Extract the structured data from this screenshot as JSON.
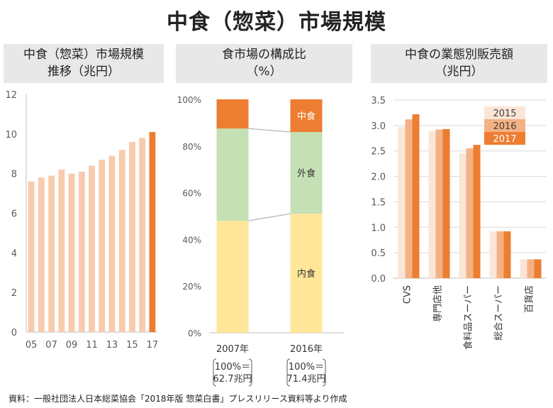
{
  "page": {
    "title": "中食（惣菜）市場規模",
    "source": "資料：一般社団法人日本総菜協会「2018年版 惣菜白書」プレスリリース資料等より作成"
  },
  "panels": {
    "trend": {
      "title_line1": "中食（惣菜）市場規模",
      "title_line2": "推移（兆円）"
    },
    "share": {
      "title_line1": "食市場の構成比",
      "title_line2": "（%）"
    },
    "format": {
      "title_line1": "中食の業態別販売額",
      "title_line2": "（兆円）"
    }
  },
  "colors": {
    "light_orange": "#f8cbad",
    "orange": "#ed7d31",
    "mid_orange": "#f4b183",
    "pale_orange": "#fbe5d6",
    "green": "#c5e0b4",
    "yellow": "#ffe699",
    "grid": "#d9d9d9"
  },
  "chart_data": [
    {
      "type": "bar",
      "title": "中食（惣菜）市場規模推移（兆円）",
      "categories": [
        "05",
        "06",
        "07",
        "08",
        "09",
        "10",
        "11",
        "12",
        "13",
        "14",
        "15",
        "16",
        "17"
      ],
      "tick_labels": [
        "05",
        "07",
        "09",
        "11",
        "13",
        "15",
        "17"
      ],
      "values": [
        7.6,
        7.8,
        7.9,
        8.2,
        8.0,
        8.1,
        8.4,
        8.7,
        8.9,
        9.2,
        9.6,
        9.8,
        10.1
      ],
      "ylim": [
        0,
        12
      ],
      "yticks": [
        0,
        2,
        4,
        6,
        8,
        10,
        12
      ],
      "highlight_index": 12,
      "grid": false
    },
    {
      "type": "bar",
      "stacked": true,
      "percent": true,
      "title": "食市場の構成比（%）",
      "categories": [
        "2007年",
        "2016年"
      ],
      "category_notes": [
        [
          "100%＝",
          "62.7兆円"
        ],
        [
          "100%＝",
          "71.4兆円"
        ]
      ],
      "series": [
        {
          "name": "内食",
          "values": [
            48,
            51
          ]
        },
        {
          "name": "外食",
          "values": [
            39.5,
            35
          ]
        },
        {
          "name": "中食",
          "values": [
            12.5,
            14
          ]
        }
      ],
      "ylim": [
        0,
        100
      ],
      "yticks": [
        "0%",
        "20%",
        "40%",
        "60%",
        "80%",
        "100%"
      ],
      "grid": false
    },
    {
      "type": "bar",
      "title": "中食の業態別販売額（兆円）",
      "categories": [
        "CVS",
        "専門店他",
        "食料品スーパー",
        "総合スーパー",
        "百貨店"
      ],
      "series": [
        {
          "name": "2015",
          "values": [
            2.97,
            2.89,
            2.45,
            0.92,
            0.37
          ]
        },
        {
          "name": "2016",
          "values": [
            3.12,
            2.92,
            2.55,
            0.92,
            0.37
          ]
        },
        {
          "name": "2017",
          "values": [
            3.22,
            2.93,
            2.62,
            0.92,
            0.37
          ]
        }
      ],
      "ylim": [
        0,
        3.5
      ],
      "yticks": [
        "0.0",
        "0.5",
        "1.0",
        "1.5",
        "2.0",
        "2.5",
        "3.0",
        "3.5"
      ],
      "legend": "top-right",
      "grid": true
    }
  ]
}
